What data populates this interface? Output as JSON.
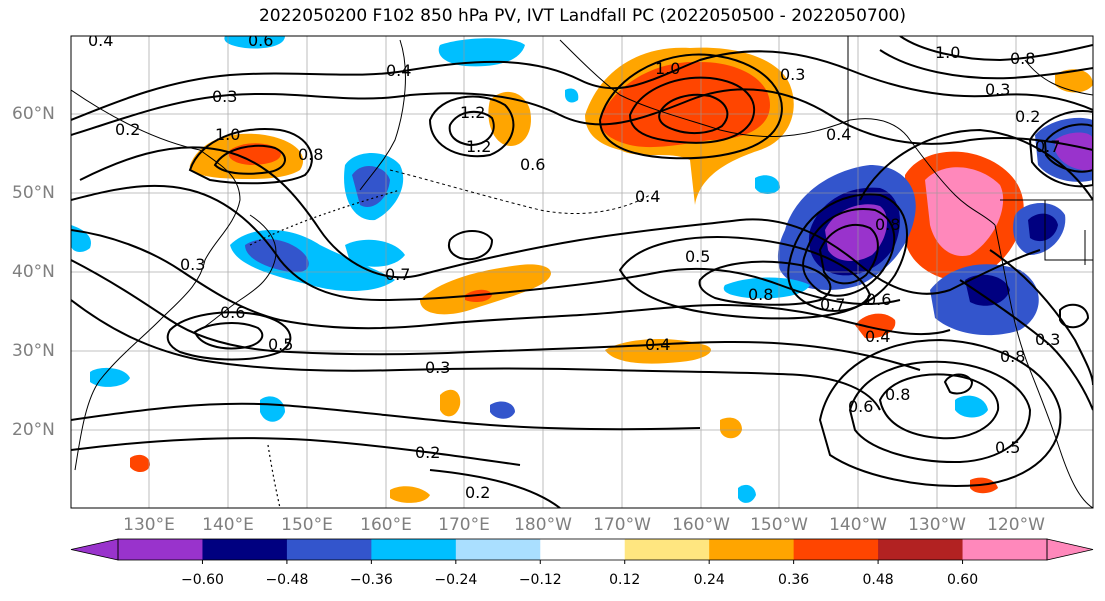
{
  "title": "2022050200 F102 850 hPa PV, IVT Landfall PC (2022050500 - 2022050700)",
  "lat_labels": [
    "60°N",
    "50°N",
    "40°N",
    "30°N",
    "20°N"
  ],
  "lon_labels": [
    "130°E",
    "140°E",
    "150°E",
    "160°E",
    "170°E",
    "180°W",
    "170°W",
    "160°W",
    "150°W",
    "140°W",
    "130°W",
    "120°W"
  ],
  "contour_labels": [
    "0.4",
    "0.6",
    "0.2",
    "0.3",
    "0.4",
    "1.0",
    "1.2",
    "0.8",
    "1.0",
    "0.8",
    "1.2",
    "1.0",
    "0.8",
    "0.3",
    "0.3",
    "0.4",
    "0.6",
    "0.4",
    "0.5",
    "0.7",
    "0.3",
    "0.6",
    "0.5",
    "0.8",
    "0.7",
    "0.6",
    "0.4",
    "0.4",
    "0.3",
    "0.2",
    "0.2",
    "0.8",
    "0.6",
    "0.8",
    "0.7",
    "0.5",
    "0.3",
    "0.2"
  ],
  "colorbar": {
    "colors": [
      "#9933cc",
      "#000080",
      "#3355cc",
      "#00bfff",
      "#aadfff",
      "#ffffff",
      "#ffe680",
      "#ffa500",
      "#ff4500",
      "#b22222",
      "#ff88bb"
    ],
    "ticks": [
      "−0.60",
      "−0.48",
      "−0.36",
      "−0.24",
      "−0.12",
      "0.12",
      "0.24",
      "0.36",
      "0.48",
      "0.60"
    ]
  },
  "legend_colors": {
    "neg_deep": "#9933cc",
    "neg_navy": "#000080",
    "neg_blue": "#3355cc",
    "neg_sky": "#00bfff",
    "neg_light": "#aadfff",
    "pos_yellow": "#ffe680",
    "pos_orange": "#ffa500",
    "pos_red": "#ff4500",
    "pos_brick": "#b22222",
    "pos_pink": "#ff88bb"
  }
}
